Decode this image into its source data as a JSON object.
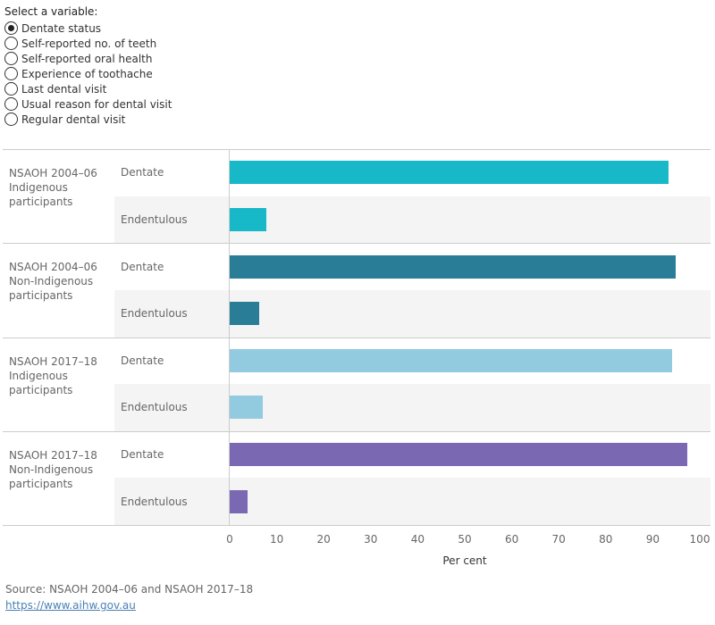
{
  "controls": {
    "label": "Select a variable:",
    "options": [
      "Dentate status",
      "Self-reported no. of teeth",
      "Self-reported oral health",
      "Experience of toothache",
      "Last dental visit",
      "Usual reason for dental visit",
      "Regular dental visit"
    ],
    "selected": 0
  },
  "chart_data": {
    "type": "bar",
    "orientation": "horizontal",
    "xlabel": "Per cent",
    "xlim": [
      0,
      100
    ],
    "xticks": [
      0,
      10,
      20,
      30,
      40,
      50,
      60,
      70,
      80,
      90,
      100
    ],
    "groups": [
      {
        "name": "NSAOH 2004–06 Indigenous participants",
        "color": "#17b8c8",
        "categories": [
          "Dentate",
          "Endentulous"
        ],
        "values": [
          93.3,
          7.8
        ]
      },
      {
        "name": "NSAOH 2004–06 Non-Indigenous participants",
        "color": "#2a7d96",
        "categories": [
          "Dentate",
          "Endentulous"
        ],
        "values": [
          94.9,
          6.3
        ]
      },
      {
        "name": "NSAOH 2017–18 Indigenous participants",
        "color": "#92cbdf",
        "categories": [
          "Dentate",
          "Endentulous"
        ],
        "values": [
          94.1,
          7.0
        ]
      },
      {
        "name": "NSAOH 2017–18 Non-Indigenous participants",
        "color": "#7b68b3",
        "categories": [
          "Dentate",
          "Endentulous"
        ],
        "values": [
          97.3,
          3.8
        ]
      }
    ]
  },
  "footer": {
    "source": "Source: NSAOH 2004–06 and NSAOH 2017–18",
    "link": "https://www.aihw.gov.au"
  }
}
